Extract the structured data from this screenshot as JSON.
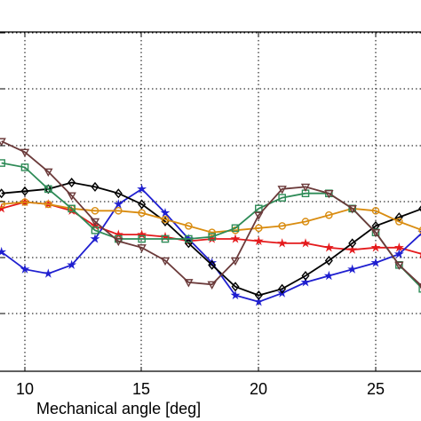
{
  "chart_data": {
    "type": "line",
    "title": "",
    "xlabel": "Mechanical angle [deg]",
    "ylabel": "",
    "xlim": [
      8.9,
      28
    ],
    "ylim": [
      0,
      7.8
    ],
    "x_ticks": [
      10,
      15,
      20,
      25
    ],
    "grid": true,
    "series": [
      {
        "color": "#e41a1c",
        "marker": "star",
        "x": [
          9,
          10,
          11,
          12,
          13,
          14,
          15,
          16,
          17,
          18,
          19,
          20,
          21,
          22,
          23,
          24,
          25,
          26,
          27
        ],
        "y": [
          3.75,
          3.9,
          3.85,
          3.7,
          3.35,
          3.15,
          3.15,
          3.1,
          3.0,
          3.05,
          3.05,
          3.0,
          2.95,
          2.95,
          2.85,
          2.8,
          2.85,
          2.85,
          2.7
        ]
      },
      {
        "color": "#1f1fd0",
        "marker": "star",
        "x": [
          9,
          10,
          11,
          12,
          13,
          14,
          15,
          16,
          17,
          18,
          19,
          20,
          21,
          22,
          23,
          24,
          25,
          26,
          27
        ],
        "y": [
          2.75,
          2.35,
          2.25,
          2.45,
          3.05,
          3.85,
          4.2,
          3.65,
          3.05,
          2.5,
          1.75,
          1.6,
          1.8,
          2.05,
          2.2,
          2.35,
          2.5,
          2.7,
          3.2
        ]
      },
      {
        "color": "#000000",
        "marker": "diamond",
        "x": [
          9,
          10,
          11,
          12,
          13,
          14,
          15,
          16,
          17,
          18,
          19,
          20,
          21,
          22,
          23,
          24,
          25,
          26,
          27
        ],
        "y": [
          4.1,
          4.15,
          4.2,
          4.35,
          4.25,
          4.1,
          3.85,
          3.45,
          2.95,
          2.45,
          1.95,
          1.75,
          1.9,
          2.2,
          2.55,
          2.95,
          3.35,
          3.55,
          3.75
        ]
      },
      {
        "color": "#d98c10",
        "marker": "circle",
        "x": [
          9,
          10,
          11,
          12,
          13,
          14,
          15,
          16,
          17,
          18,
          19,
          20,
          21,
          22,
          23,
          24,
          25,
          26,
          27
        ],
        "y": [
          3.85,
          3.9,
          3.85,
          3.75,
          3.7,
          3.7,
          3.65,
          3.5,
          3.35,
          3.2,
          3.25,
          3.3,
          3.35,
          3.45,
          3.6,
          3.75,
          3.7,
          3.45,
          3.25
        ]
      },
      {
        "color": "#2e8b57",
        "marker": "square",
        "x": [
          9,
          10,
          11,
          12,
          13,
          14,
          15,
          16,
          17,
          18,
          19,
          20,
          21,
          22,
          23,
          24,
          25,
          26,
          27
        ],
        "y": [
          4.8,
          4.7,
          4.2,
          3.75,
          3.25,
          3.05,
          3.05,
          3.05,
          3.05,
          3.1,
          3.3,
          3.75,
          4.0,
          4.1,
          4.1,
          3.75,
          3.2,
          2.45,
          1.9
        ]
      },
      {
        "color": "#6b3a3a",
        "marker": "triangle-down",
        "x": [
          9,
          10,
          11,
          12,
          13,
          14,
          15,
          16,
          17,
          18,
          19,
          20,
          21,
          22,
          23,
          24,
          25,
          26,
          27
        ],
        "y": [
          5.3,
          5.05,
          4.6,
          4.05,
          3.45,
          3.0,
          2.85,
          2.55,
          2.05,
          2.0,
          2.55,
          3.6,
          4.2,
          4.25,
          4.1,
          3.75,
          3.2,
          2.45,
          1.95
        ]
      }
    ]
  }
}
